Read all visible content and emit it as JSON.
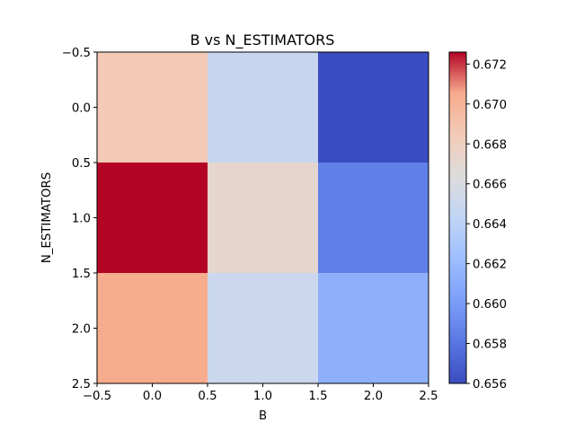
{
  "chart_data": {
    "type": "heatmap",
    "title": "B vs N_ESTIMATORS",
    "xlabel": "B",
    "ylabel": "N_ESTIMATORS",
    "x_categories": [
      0,
      1,
      2
    ],
    "y_categories": [
      0,
      1,
      2
    ],
    "values": [
      [
        0.6685,
        0.6648,
        0.656
      ],
      [
        0.6726,
        0.6672,
        0.6585
      ],
      [
        0.6705,
        0.665,
        0.6613
      ]
    ],
    "xlim": [
      -0.5,
      2.5
    ],
    "ylim": [
      2.5,
      -0.5
    ],
    "x_ticks": [
      "−0.5",
      "0.0",
      "0.5",
      "1.0",
      "1.5",
      "2.0",
      "2.5"
    ],
    "y_ticks": [
      "−0.5",
      "0.0",
      "0.5",
      "1.0",
      "1.5",
      "2.0",
      "2.5"
    ],
    "colormap": "coolwarm",
    "colorbar": {
      "range": [
        0.656,
        0.6726
      ],
      "ticks": [
        "0.656",
        "0.658",
        "0.660",
        "0.662",
        "0.664",
        "0.666",
        "0.668",
        "0.670",
        "0.672"
      ]
    },
    "grid": false
  }
}
